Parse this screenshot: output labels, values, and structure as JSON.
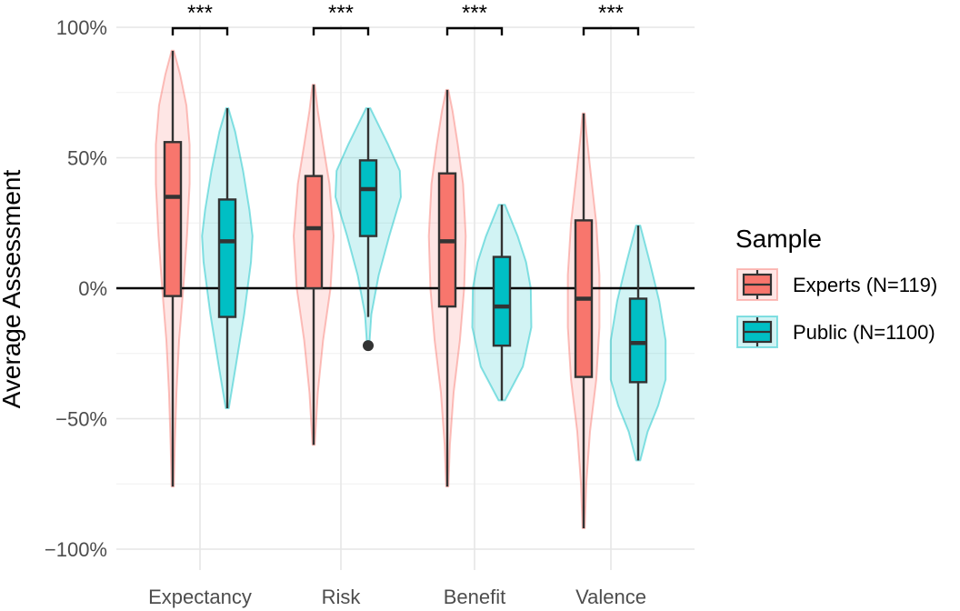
{
  "chart_data": {
    "type": "violin-box",
    "title": "",
    "xlabel": "",
    "ylabel": "Average Assessment",
    "ylim": [
      -1.08,
      1.0
    ],
    "y_ticks": [
      {
        "value": 1.0,
        "label": "100%"
      },
      {
        "value": 0.5,
        "label": "50%"
      },
      {
        "value": 0.0,
        "label": "0%"
      },
      {
        "value": -0.5,
        "label": "−50%"
      },
      {
        "value": -1.0,
        "label": "−100%"
      }
    ],
    "reference_line": 0,
    "grid": true,
    "categories": [
      "Expectancy",
      "Risk",
      "Benefit",
      "Valence"
    ],
    "series": [
      {
        "name": "Experts (N=119)",
        "color": "#F8766D",
        "stats": [
          {
            "min": -0.76,
            "q1": -0.03,
            "median": 0.35,
            "q3": 0.56,
            "max": 0.91,
            "outliers": []
          },
          {
            "min": -0.6,
            "q1": 0.0,
            "median": 0.23,
            "q3": 0.43,
            "max": 0.78,
            "outliers": []
          },
          {
            "min": -0.76,
            "q1": -0.07,
            "median": 0.18,
            "q3": 0.44,
            "max": 0.76,
            "outliers": []
          },
          {
            "min": -0.92,
            "q1": -0.34,
            "median": -0.04,
            "q3": 0.26,
            "max": 0.67,
            "outliers": []
          }
        ]
      },
      {
        "name": "Public (N=1100)",
        "color": "#00BFC4",
        "stats": [
          {
            "min": -0.46,
            "q1": -0.11,
            "median": 0.18,
            "q3": 0.34,
            "max": 0.69,
            "outliers": []
          },
          {
            "min": -0.11,
            "q1": 0.2,
            "median": 0.38,
            "q3": 0.49,
            "max": 0.69,
            "outliers": [
              -0.22
            ]
          },
          {
            "min": -0.43,
            "q1": -0.22,
            "median": -0.07,
            "q3": 0.12,
            "max": 0.32,
            "outliers": []
          },
          {
            "min": -0.66,
            "q1": -0.36,
            "median": -0.21,
            "q3": -0.04,
            "max": 0.24,
            "outliers": []
          }
        ]
      }
    ],
    "violins": [
      [
        {
          "y": [
            -0.76,
            -0.6,
            -0.4,
            -0.2,
            0.0,
            0.2,
            0.4,
            0.55,
            0.7,
            0.82,
            0.91
          ],
          "w": [
            0.02,
            0.04,
            0.07,
            0.12,
            0.2,
            0.27,
            0.32,
            0.32,
            0.26,
            0.14,
            0.02
          ]
        },
        {
          "y": [
            -0.46,
            -0.3,
            -0.1,
            0.1,
            0.2,
            0.3,
            0.45,
            0.6,
            0.69
          ],
          "w": [
            0.03,
            0.16,
            0.32,
            0.45,
            0.48,
            0.42,
            0.3,
            0.15,
            0.02
          ]
        }
      ],
      [
        {
          "y": [
            -0.6,
            -0.4,
            -0.2,
            0.0,
            0.2,
            0.4,
            0.55,
            0.68,
            0.78
          ],
          "w": [
            0.02,
            0.08,
            0.18,
            0.32,
            0.38,
            0.3,
            0.18,
            0.08,
            0.02
          ]
        },
        {
          "y": [
            -0.22,
            -0.1,
            0.05,
            0.2,
            0.35,
            0.45,
            0.55,
            0.69
          ],
          "w": [
            0.02,
            0.06,
            0.2,
            0.4,
            0.62,
            0.6,
            0.38,
            0.04
          ]
        }
      ],
      [
        {
          "y": [
            -0.76,
            -0.6,
            -0.4,
            -0.2,
            0.0,
            0.2,
            0.4,
            0.55,
            0.68,
            0.76
          ],
          "w": [
            0.02,
            0.05,
            0.12,
            0.24,
            0.32,
            0.35,
            0.3,
            0.2,
            0.1,
            0.02
          ]
        },
        {
          "y": [
            -0.43,
            -0.3,
            -0.15,
            0.0,
            0.1,
            0.2,
            0.32
          ],
          "w": [
            0.06,
            0.4,
            0.56,
            0.55,
            0.46,
            0.3,
            0.06
          ]
        }
      ],
      [
        {
          "y": [
            -0.92,
            -0.75,
            -0.55,
            -0.35,
            -0.15,
            0.05,
            0.25,
            0.45,
            0.6,
            0.67
          ],
          "w": [
            0.02,
            0.05,
            0.12,
            0.24,
            0.3,
            0.3,
            0.24,
            0.13,
            0.05,
            0.02
          ]
        },
        {
          "y": [
            -0.66,
            -0.55,
            -0.45,
            -0.35,
            -0.2,
            -0.05,
            0.1,
            0.24
          ],
          "w": [
            0.04,
            0.18,
            0.38,
            0.52,
            0.52,
            0.4,
            0.22,
            0.04
          ]
        }
      ]
    ],
    "significance": [
      {
        "category": "Expectancy",
        "label": "***"
      },
      {
        "category": "Risk",
        "label": "***"
      },
      {
        "category": "Benefit",
        "label": "***"
      },
      {
        "category": "Valence",
        "label": "***"
      }
    ],
    "legend": {
      "title": "Sample",
      "position": "right",
      "entries": [
        "Experts (N=119)",
        "Public (N=1100)"
      ]
    }
  }
}
